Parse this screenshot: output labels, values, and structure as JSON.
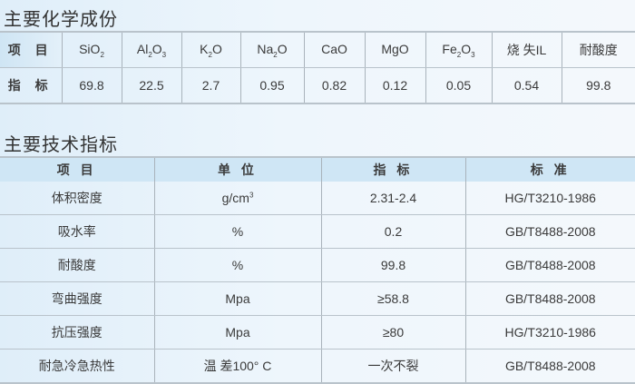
{
  "composition": {
    "title": "主要化学成份",
    "row_labels": [
      "项 目",
      "指 标"
    ],
    "items": [
      {
        "name": "SiO",
        "sub1": "2",
        "rest": "",
        "sub2": "",
        "value": "69.8"
      },
      {
        "name": "Al",
        "sub1": "2",
        "rest": "O",
        "sub2": "3",
        "value": "22.5"
      },
      {
        "name": "K",
        "sub1": "2",
        "rest": "O",
        "sub2": "",
        "value": "2.7"
      },
      {
        "name": "Na",
        "sub1": "2",
        "rest": "O",
        "sub2": "",
        "value": "0.95"
      },
      {
        "name": "CaO",
        "sub1": "",
        "rest": "",
        "sub2": "",
        "value": "0.82"
      },
      {
        "name": "MgO",
        "sub1": "",
        "rest": "",
        "sub2": "",
        "value": "0.12"
      },
      {
        "name": "Fe",
        "sub1": "2",
        "rest": "O",
        "sub2": "3",
        "value": "0.05"
      },
      {
        "name": "烧 失IL",
        "sub1": "",
        "rest": "",
        "sub2": "",
        "value": "0.54"
      },
      {
        "name": "耐酸度",
        "sub1": "",
        "rest": "",
        "sub2": "",
        "value": "99.8"
      }
    ]
  },
  "technical": {
    "title": "主要技术指标",
    "headers": [
      "项 目",
      "单 位",
      "指 标",
      "标 准"
    ],
    "rows": [
      {
        "item": "体积密度",
        "unit": "g/cm",
        "unit_sup": "3",
        "value": "2.31-2.4",
        "standard": "HG/T3210-1986"
      },
      {
        "item": "吸水率",
        "unit": "%",
        "unit_sup": "",
        "value": "0.2",
        "standard": "GB/T8488-2008"
      },
      {
        "item": "耐酸度",
        "unit": "%",
        "unit_sup": "",
        "value": "99.8",
        "standard": "GB/T8488-2008"
      },
      {
        "item": "弯曲强度",
        "unit": "Mpa",
        "unit_sup": "",
        "value": "≥58.8",
        "standard": "GB/T8488-2008"
      },
      {
        "item": "抗压强度",
        "unit": "Mpa",
        "unit_sup": "",
        "value": "≥80",
        "standard": "HG/T3210-1986"
      },
      {
        "item": "耐急冷急热性",
        "unit": "温 差100° C",
        "unit_sup": "",
        "value": "一次不裂",
        "standard": "GB/T8488-2008"
      }
    ]
  }
}
